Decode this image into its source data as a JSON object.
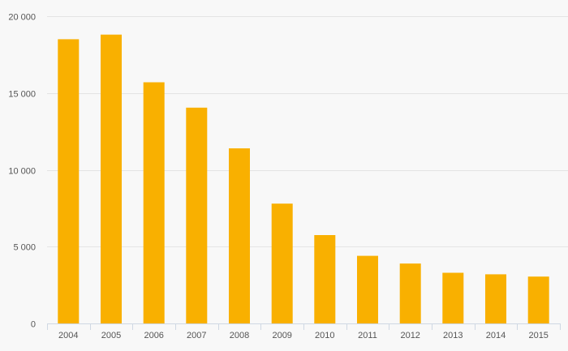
{
  "chart_data": {
    "type": "bar",
    "categories": [
      "2004",
      "2005",
      "2006",
      "2007",
      "2008",
      "2009",
      "2010",
      "2011",
      "2012",
      "2013",
      "2014",
      "2015"
    ],
    "values": [
      18500,
      18800,
      15700,
      14050,
      11400,
      7800,
      5750,
      4400,
      3900,
      3300,
      3200,
      3050
    ],
    "ylim": [
      0,
      20000
    ],
    "y_ticks": [
      0,
      5000,
      10000,
      15000,
      20000
    ],
    "y_tick_labels": [
      "0",
      "5 000",
      "10 000",
      "15 000",
      "20 000"
    ],
    "grid": true,
    "bar_color": "#f9b000",
    "grid_color": "#e4e4e4",
    "axis_color": "#cfd8e3",
    "title": "",
    "xlabel": "",
    "ylabel": ""
  }
}
